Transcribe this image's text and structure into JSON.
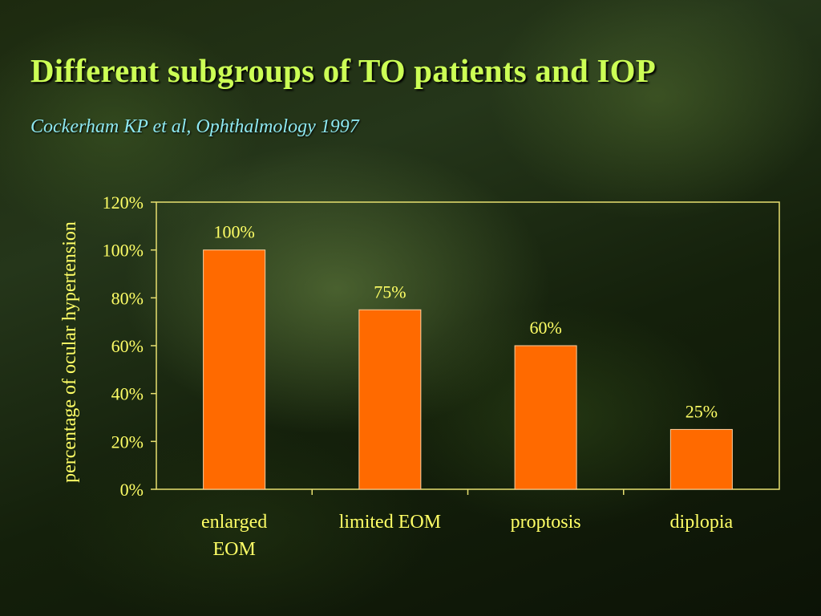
{
  "slide": {
    "title": "Different subgroups of TO patients and IOP",
    "subtitle": "Cockerham KP et al, Ophthalmology 1997"
  },
  "colors": {
    "title": "#ccff55",
    "subtitle": "#8ee8f0",
    "axis_text": "#ffff66",
    "bar_fill": "#ff6a00",
    "bar_stroke": "#ffd0a0",
    "plot_frame": "#e8e070"
  },
  "chart_data": {
    "type": "bar",
    "categories": [
      [
        "enlarged",
        "EOM"
      ],
      [
        "limited EOM"
      ],
      [
        "proptosis"
      ],
      [
        "diplopia"
      ]
    ],
    "values": [
      100,
      75,
      60,
      25
    ],
    "data_labels": [
      "100%",
      "75%",
      "60%",
      "25%"
    ],
    "ylabel": "percentage of ocular hypertension",
    "ylim": [
      0,
      120
    ],
    "yticks": [
      0,
      20,
      40,
      60,
      80,
      100,
      120
    ],
    "ytick_labels": [
      "0%",
      "20%",
      "40%",
      "60%",
      "80%",
      "100%",
      "120%"
    ],
    "grid": false,
    "legend": "none"
  }
}
